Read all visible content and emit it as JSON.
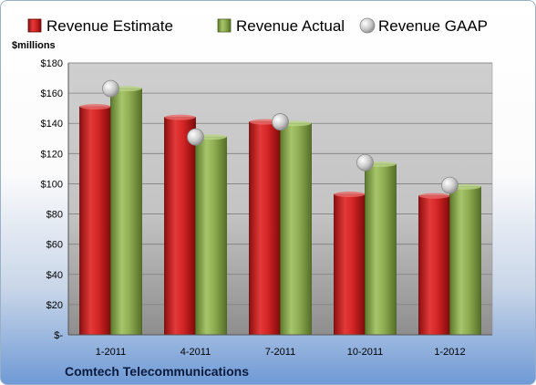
{
  "chart_data": {
    "type": "bar",
    "unit_label": "$millions",
    "categories": [
      "1-2011",
      "4-2011",
      "7-2011",
      "10-2011",
      "1-2012"
    ],
    "series": [
      {
        "name": "Revenue Estimate",
        "kind": "bar",
        "color": "#d42a2a",
        "values": [
          151,
          144,
          141,
          93,
          92
        ]
      },
      {
        "name": "Revenue Actual",
        "kind": "bar",
        "color": "#8fae52",
        "values": [
          163,
          131,
          140,
          113,
          98
        ]
      },
      {
        "name": "Revenue GAAP",
        "kind": "marker",
        "color": "#c8c8c8",
        "values": [
          163,
          131,
          141,
          114,
          99
        ]
      }
    ],
    "ylim": [
      0,
      180
    ],
    "yticks": [
      0,
      20,
      40,
      60,
      80,
      100,
      120,
      140,
      160,
      180
    ],
    "ytick_labels": [
      "$-",
      "$20",
      "$40",
      "$60",
      "$80",
      "$100",
      "$120",
      "$140",
      "$160",
      "$180"
    ],
    "grid": true,
    "legend_position": "top"
  },
  "footer": {
    "company": "Comtech Telecommunications"
  }
}
